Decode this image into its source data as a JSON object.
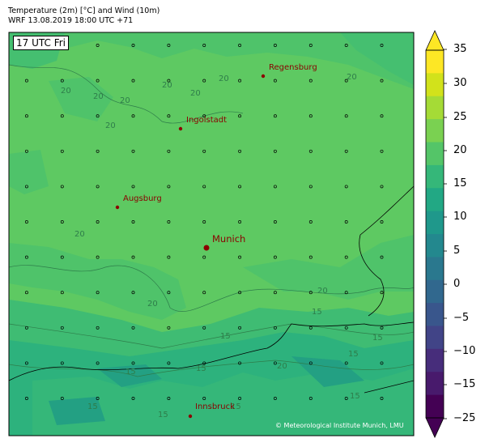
{
  "header": {
    "line1": "Temperature (2m) [°C] and Wind (10m)",
    "line2": "WRF 13.08.2019 18:00 UTC +71"
  },
  "map": {
    "time_badge": "17 UTC Fri",
    "credit": "© Meteorological Institute Munich, LMU",
    "cities": [
      {
        "name": "Regensburg"
      },
      {
        "name": "Ingolstadt"
      },
      {
        "name": "Augsburg"
      },
      {
        "name": "Munich"
      },
      {
        "name": "Innsbruck"
      }
    ],
    "contour_labels": [
      "20",
      "20",
      "20",
      "20",
      "20",
      "20",
      "20",
      "20",
      "20",
      "20",
      "20",
      "15",
      "15",
      "15",
      "15",
      "15",
      "15",
      "15",
      "15",
      "15",
      "20",
      "15"
    ],
    "colors": {
      "warm_green": "#5ec962",
      "mid_green": "#3fbc73",
      "teal_green": "#2db27d",
      "city_dot": "#8b0000"
    }
  },
  "colorbar": {
    "ticks": [
      "35",
      "30",
      "25",
      "20",
      "15",
      "10",
      "5",
      "0",
      "−5",
      "−10",
      "−15",
      "−25"
    ],
    "range": [
      -25,
      35
    ],
    "colors_top_to_bottom": [
      "#fde725",
      "#d2e21b",
      "#a5db36",
      "#7ad151",
      "#54c568",
      "#35b779",
      "#22a884",
      "#1f988b",
      "#23888e",
      "#2a788e",
      "#31688e",
      "#39568c",
      "#414487",
      "#472d7b",
      "#481a6c",
      "#440154"
    ]
  }
}
